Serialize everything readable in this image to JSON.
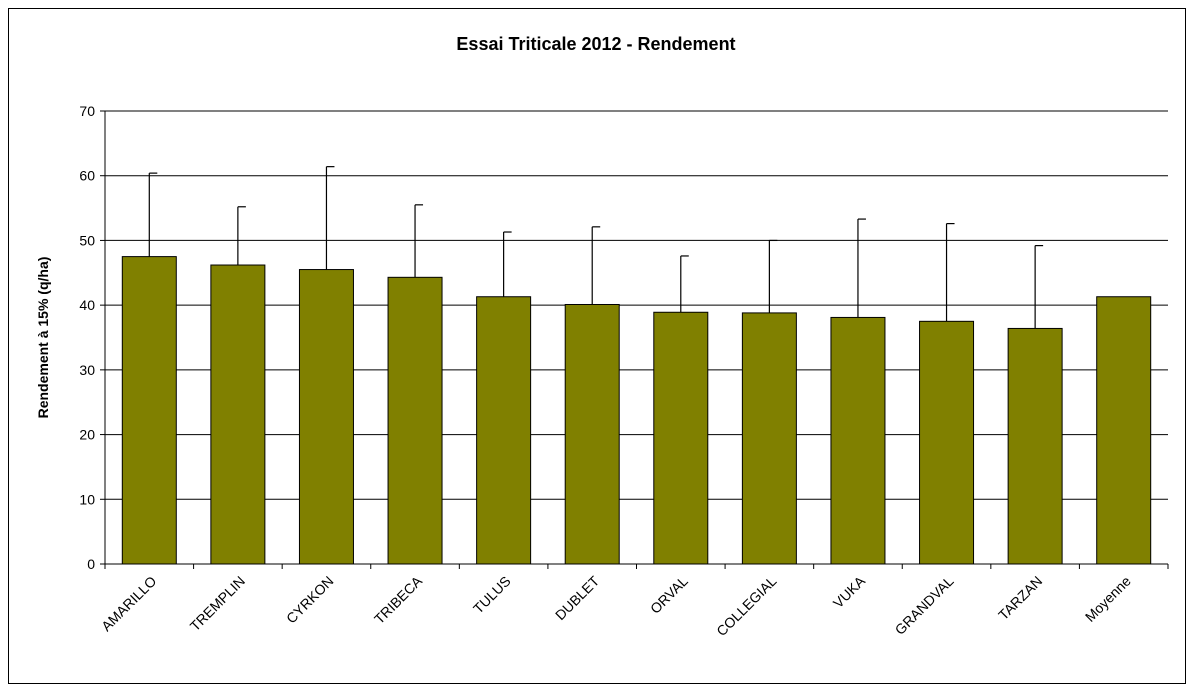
{
  "chart_data": {
    "type": "bar",
    "title": "Essai Triticale 2012 - Rendement",
    "xlabel": "",
    "ylabel": "Rendement à 15% (q/ha)",
    "ylim": [
      0,
      70
    ],
    "yticks": [
      0,
      10,
      20,
      30,
      40,
      50,
      60,
      70
    ],
    "grid": true,
    "categories": [
      "AMARILLO",
      "TREMPLIN",
      "CYRKON",
      "TRIBECA",
      "TULUS",
      "DUBLET",
      "ORVAL",
      "COLLEGIAL",
      "VUKA",
      "GRANDVAL",
      "TARZAN",
      "Moyenne"
    ],
    "values": [
      47.5,
      46.2,
      45.5,
      44.3,
      41.3,
      40.1,
      38.9,
      38.8,
      38.1,
      37.5,
      36.4,
      41.3
    ],
    "error_upper": [
      60.4,
      55.2,
      61.4,
      55.5,
      51.3,
      52.1,
      47.6,
      50.0,
      53.3,
      52.6,
      49.2,
      null
    ],
    "colors": {
      "bar": "#808000",
      "bar_edge": "#000000",
      "grid": "#000000"
    }
  }
}
